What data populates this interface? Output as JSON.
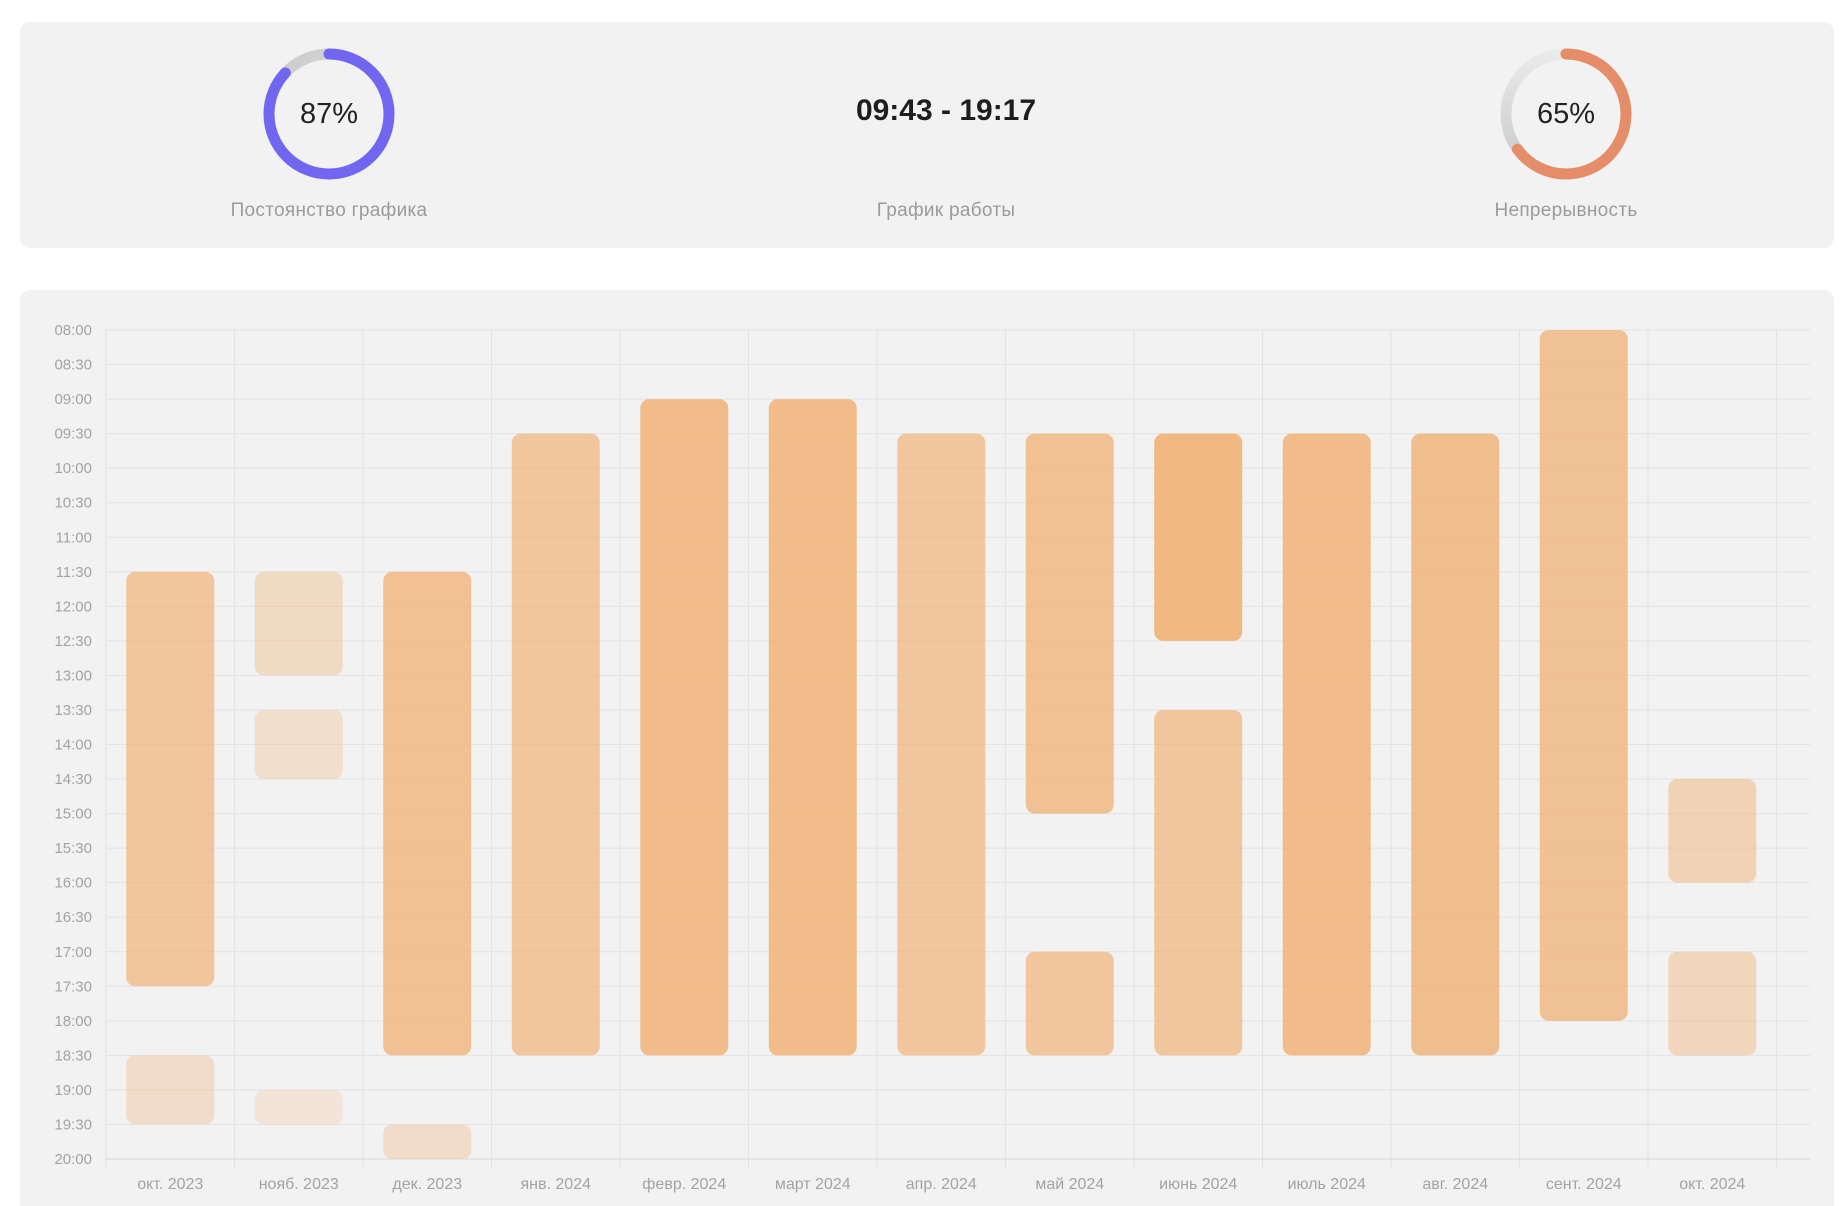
{
  "stats": {
    "consistency": {
      "value_text": "87%",
      "percent": 87,
      "label": "Постоянство графика",
      "color": "#7066f0"
    },
    "schedule": {
      "value_text": "09:43 - 19:17",
      "label": "График работы"
    },
    "continuity": {
      "value_text": "65%",
      "percent": 65,
      "label": "Непрерывность",
      "color": "#e58d68"
    }
  },
  "chart_data": {
    "type": "bar",
    "subtype": "floating-range",
    "title": "",
    "xlabel": "",
    "ylabel": "",
    "y_ticks": [
      "08:00",
      "08:30",
      "09:00",
      "09:30",
      "10:00",
      "10:30",
      "11:00",
      "11:30",
      "12:00",
      "12:30",
      "13:00",
      "13:30",
      "14:00",
      "14:30",
      "15:00",
      "15:30",
      "16:00",
      "16:30",
      "17:00",
      "17:30",
      "18:00",
      "18:30",
      "19:00",
      "19:30",
      "20:00"
    ],
    "y_range": [
      "08:00",
      "20:00"
    ],
    "y_inverted": true,
    "grid": true,
    "bar_color": "#f0b47a",
    "categories": [
      "окт. 2023",
      "нояб. 2023",
      "дек. 2023",
      "янв. 2024",
      "февр. 2024",
      "март 2024",
      "апр. 2024",
      "май 2024",
      "июнь 2024",
      "июль 2024",
      "авг. 2024",
      "сент. 2024",
      "окт. 2024"
    ],
    "ranges": [
      [
        {
          "start": "11:30",
          "end": "17:30",
          "opacity": 0.72
        },
        {
          "start": "18:30",
          "end": "19:30",
          "opacity": 0.35
        }
      ],
      [
        {
          "start": "11:30",
          "end": "13:00",
          "opacity": 0.38
        },
        {
          "start": "13:30",
          "end": "14:30",
          "opacity": 0.32
        },
        {
          "start": "19:00",
          "end": "19:30",
          "opacity": 0.22
        }
      ],
      [
        {
          "start": "11:30",
          "end": "18:30",
          "opacity": 0.8
        },
        {
          "start": "19:30",
          "end": "20:00",
          "opacity": 0.35
        }
      ],
      [
        {
          "start": "09:30",
          "end": "18:30",
          "opacity": 0.72
        }
      ],
      [
        {
          "start": "09:00",
          "end": "18:30",
          "opacity": 0.88
        }
      ],
      [
        {
          "start": "09:00",
          "end": "18:30",
          "opacity": 0.88
        }
      ],
      [
        {
          "start": "09:30",
          "end": "18:30",
          "opacity": 0.72
        }
      ],
      [
        {
          "start": "09:30",
          "end": "15:00",
          "opacity": 0.8
        },
        {
          "start": "17:00",
          "end": "18:30",
          "opacity": 0.72
        }
      ],
      [
        {
          "start": "09:30",
          "end": "12:30",
          "opacity": 0.95
        },
        {
          "start": "13:30",
          "end": "18:30",
          "opacity": 0.72
        }
      ],
      [
        {
          "start": "09:30",
          "end": "18:30",
          "opacity": 0.88
        }
      ],
      [
        {
          "start": "09:30",
          "end": "18:30",
          "opacity": 0.85
        }
      ],
      [
        {
          "start": "08:00",
          "end": "18:00",
          "opacity": 0.78
        }
      ],
      [
        {
          "start": "14:30",
          "end": "16:00",
          "opacity": 0.52
        },
        {
          "start": "17:00",
          "end": "18:30",
          "opacity": 0.45
        }
      ]
    ]
  }
}
